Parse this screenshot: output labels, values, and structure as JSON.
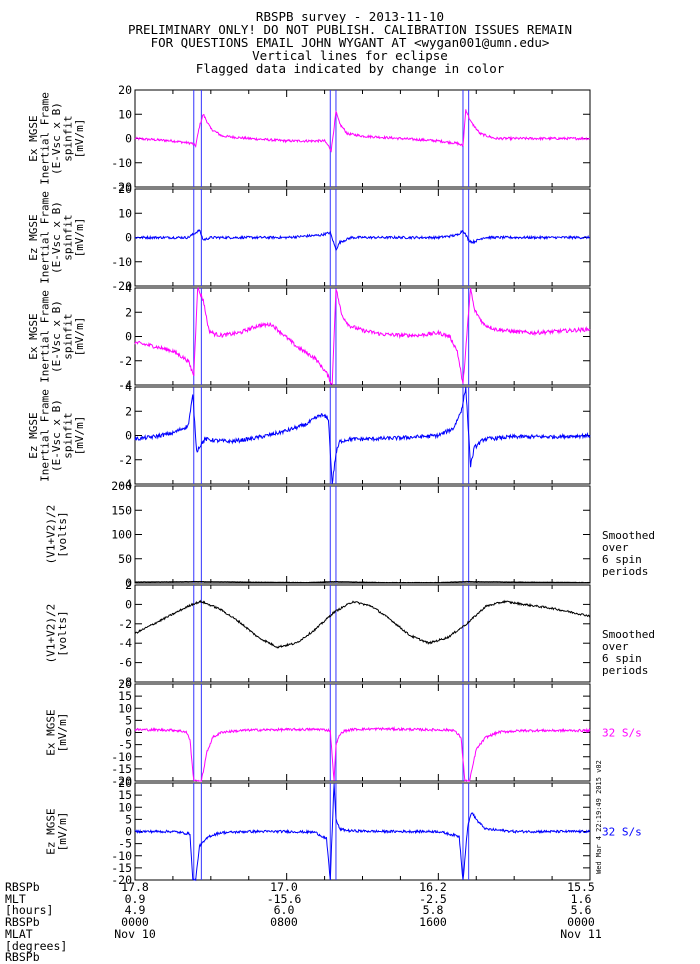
{
  "header": {
    "title": "RBSPB survey - 2013-11-10",
    "line2": "PRELIMINARY ONLY! DO NOT PUBLISH. CALIBRATION ISSUES REMAIN",
    "line3": "FOR QUESTIONS EMAIL JOHN WYGANT AT <wygan001@umn.edu>",
    "line4": "Vertical lines for eclipse",
    "line5": "Flagged data indicated by change in color"
  },
  "eclipse_times_hours": [
    3.1,
    3.5,
    10.3,
    10.6,
    17.3,
    17.6
  ],
  "chart_data": [
    {
      "type": "line",
      "panel": "Ex spinfit (large scale)",
      "ylabel": [
        "Ex MGSE",
        "Inertial Frame",
        "(E-Vsc x B)",
        "spinfit",
        "[mV/m]"
      ],
      "ylim": [
        -20,
        20
      ],
      "yticks": [
        -20,
        -10,
        0,
        10,
        20
      ],
      "color": "#ff00ff",
      "x": [
        0,
        2,
        3.0,
        3.2,
        3.4,
        3.6,
        4.0,
        4.6,
        6,
        8,
        10,
        10.2,
        10.35,
        10.6,
        10.8,
        11.2,
        12,
        14,
        16,
        17.0,
        17.3,
        17.45,
        17.7,
        18.2,
        19,
        20,
        22,
        24
      ],
      "y": [
        0,
        -1,
        -2,
        -3,
        5,
        10,
        4,
        1,
        0,
        -1,
        -1,
        -3,
        -5,
        11,
        6,
        2,
        1,
        0,
        -1,
        -2,
        -3,
        12,
        7,
        2,
        0,
        0,
        0,
        0
      ]
    },
    {
      "type": "line",
      "panel": "Ez spinfit (large scale)",
      "ylabel": [
        "Ez MGSE",
        "Inertial Frame",
        "(E-Vsc x B)",
        "spinfit",
        "[mV/m]"
      ],
      "ylim": [
        -20,
        20
      ],
      "yticks": [
        -20,
        -10,
        0,
        10,
        20
      ],
      "color": "#0000ff",
      "x": [
        0,
        2.8,
        3.2,
        3.4,
        3.6,
        4.0,
        6,
        8,
        9.8,
        10.3,
        10.6,
        10.8,
        11.4,
        14,
        16,
        17.0,
        17.3,
        17.6,
        17.8,
        18.4,
        24
      ],
      "y": [
        0,
        0,
        2,
        3,
        -1,
        0,
        0,
        0,
        1,
        2,
        -5,
        -2,
        0,
        0,
        0,
        1,
        3,
        -1,
        -2,
        0,
        0
      ]
    },
    {
      "type": "line",
      "panel": "Ex spinfit (zoomed)",
      "ylabel": [
        "Ex MGSE",
        "Inertial Frame",
        "(E-Vsc x B)",
        "spinfit",
        "[mV/m]"
      ],
      "ylim": [
        -4,
        4
      ],
      "yticks": [
        -4,
        -2,
        0,
        2,
        4
      ],
      "color": "#ff00ff",
      "x": [
        0,
        1,
        2,
        2.8,
        3.1,
        3.3,
        3.6,
        3.9,
        4.2,
        4.6,
        5.5,
        6.5,
        7.2,
        7.8,
        8.5,
        9.5,
        10.1,
        10.4,
        10.6,
        10.9,
        11.3,
        12,
        13,
        14,
        15,
        16,
        16.6,
        17.0,
        17.3,
        17.7,
        17.9,
        18.4,
        19,
        20,
        21,
        22,
        23,
        24
      ],
      "y": [
        -0.5,
        -0.8,
        -1.2,
        -2.0,
        -3.2,
        4,
        3,
        0.5,
        0.2,
        0.1,
        0.3,
        0.9,
        1.0,
        0.2,
        -0.8,
        -1.8,
        -3.0,
        -4,
        4,
        1.8,
        0.9,
        0.5,
        0.2,
        0.1,
        0.1,
        0.3,
        0,
        -1.2,
        -4,
        4,
        2.2,
        1.0,
        0.6,
        0.4,
        0.3,
        0.4,
        0.5,
        0.6
      ]
    },
    {
      "type": "line",
      "panel": "Ez spinfit (zoomed)",
      "ylabel": [
        "Ez MGSE",
        "Inertial Frame",
        "(E-Vsc x B)",
        "spinfit",
        "[mV/m]"
      ],
      "ylim": [
        -4,
        4
      ],
      "yticks": [
        -4,
        -2,
        0,
        2,
        4
      ],
      "color": "#0000ff",
      "x": [
        0,
        1,
        2,
        2.8,
        3.05,
        3.25,
        3.45,
        3.7,
        4.2,
        5,
        6,
        7,
        8,
        9,
        9.8,
        10.2,
        10.4,
        10.6,
        10.8,
        11.3,
        12,
        14,
        16,
        16.8,
        17.2,
        17.45,
        17.7,
        17.9,
        18.4,
        20,
        22,
        24
      ],
      "y": [
        -0.3,
        -0.1,
        0.2,
        0.8,
        3.3,
        -1.3,
        -0.8,
        -0.3,
        -0.4,
        -0.5,
        -0.3,
        0,
        0.4,
        0.9,
        1.7,
        1.4,
        -4,
        -1.5,
        -0.5,
        -0.3,
        -0.3,
        -0.2,
        0,
        0.6,
        2.0,
        3.9,
        -2.5,
        -1.0,
        -0.3,
        -0.1,
        -0.1,
        0
      ]
    },
    {
      "type": "line",
      "panel": "Spacecraft potential (0-200)",
      "ylabel": [
        "(V1+V2)/2",
        "[volts]"
      ],
      "ylim": [
        0,
        200
      ],
      "yticks": [
        0,
        50,
        100,
        150,
        200
      ],
      "color": "#000000",
      "annotation": [
        "Smoothed",
        "over",
        "6 spin",
        "periods"
      ],
      "x": [
        0,
        3.3,
        6,
        9,
        10.5,
        13,
        16,
        17.5,
        20,
        24
      ],
      "y": [
        2,
        3,
        2,
        1,
        3,
        1,
        1,
        3,
        2,
        1
      ]
    },
    {
      "type": "line",
      "panel": "Spacecraft potential (zoomed)",
      "ylabel": [
        "(V1+V2)/2",
        "[volts]"
      ],
      "ylim": [
        -8,
        2
      ],
      "yticks": [
        -8,
        -6,
        -4,
        -2,
        0,
        2
      ],
      "color": "#000000",
      "annotation": [
        "Smoothed",
        "over",
        "6 spin",
        "periods"
      ],
      "x": [
        0,
        1,
        2,
        3,
        3.5,
        4.5,
        5.5,
        6.5,
        7.5,
        8.5,
        9.5,
        10.5,
        11.5,
        12.5,
        13.5,
        14.5,
        15.5,
        16.5,
        17.5,
        18.5,
        19.5,
        20.5,
        22,
        24
      ],
      "y": [
        -3.0,
        -2.0,
        -1.0,
        0.0,
        0.3,
        -0.5,
        -1.8,
        -3.4,
        -4.4,
        -4.0,
        -2.6,
        -0.8,
        0.3,
        -0.2,
        -1.6,
        -3.2,
        -4.0,
        -3.4,
        -2.0,
        -0.2,
        0.3,
        0,
        -0.4,
        -1.2
      ]
    },
    {
      "type": "line",
      "panel": "Ex 32 S/s",
      "ylabel": [
        "Ex MGSE",
        "[mV/m]"
      ],
      "ylim": [
        -20,
        20
      ],
      "yticks": [
        -20,
        -15,
        -10,
        -5,
        0,
        5,
        10,
        15,
        20
      ],
      "color": "#ff00ff",
      "annotation": [
        "32 S/s"
      ],
      "x": [
        0,
        2,
        2.7,
        2.9,
        3.1,
        3.5,
        3.8,
        4.1,
        4.6,
        6,
        8,
        9.8,
        10.3,
        10.5,
        10.6,
        10.8,
        11.0,
        11.5,
        13,
        15,
        16.8,
        17.2,
        17.4,
        17.65,
        18.0,
        18.5,
        19.2,
        20.5,
        22,
        24
      ],
      "y": [
        1.2,
        1.0,
        0.3,
        -3,
        -20,
        -20,
        -8,
        -2,
        0.2,
        1.0,
        1.2,
        1.3,
        0.8,
        -20,
        -5,
        -1,
        0.5,
        1.3,
        1.5,
        1.2,
        1.0,
        -2,
        -20,
        -20,
        -7,
        -2,
        0.2,
        0.8,
        0.8,
        0.8
      ]
    },
    {
      "type": "line",
      "panel": "Ez 32 S/s",
      "ylabel": [
        "Ez MGSE",
        "[mV/m]"
      ],
      "ylim": [
        -20,
        20
      ],
      "yticks": [
        -20,
        -15,
        -10,
        -5,
        0,
        5,
        10,
        15,
        20
      ],
      "color": "#0000ff",
      "annotation": [
        "32 S/s"
      ],
      "x": [
        0,
        2,
        2.9,
        3.05,
        3.2,
        3.4,
        3.6,
        3.9,
        4.5,
        6,
        8,
        9.5,
        10.1,
        10.3,
        10.5,
        10.6,
        10.8,
        11.3,
        13,
        16,
        17.1,
        17.3,
        17.55,
        17.75,
        18.1,
        18.5,
        20,
        24
      ],
      "y": [
        0,
        0,
        -1,
        -20,
        -20,
        -6,
        -4.5,
        -2,
        -0.5,
        0,
        0,
        -0.3,
        -3,
        -20,
        20,
        5,
        1,
        0.3,
        0,
        0,
        -2,
        -20,
        2,
        8,
        4,
        1,
        0,
        0
      ]
    }
  ],
  "watermark": "Wed Mar  4 22:19:49 2015 v02",
  "footer": {
    "row_labels": [
      "RBSPb",
      "MLT",
      "[hours]",
      "RBSPb",
      "MLAT",
      "[degrees]",
      "RBSPb"
    ],
    "columns": [
      [
        "17.8",
        "0.9",
        "4.9",
        "0000",
        "Nov 10"
      ],
      [
        "17.0",
        "-15.6",
        "6.0",
        "0800",
        ""
      ],
      [
        "16.2",
        "-2.5",
        "5.8",
        "1600",
        ""
      ],
      [
        "15.5",
        "1.6",
        "5.6",
        "0000",
        "Nov 11"
      ]
    ]
  }
}
